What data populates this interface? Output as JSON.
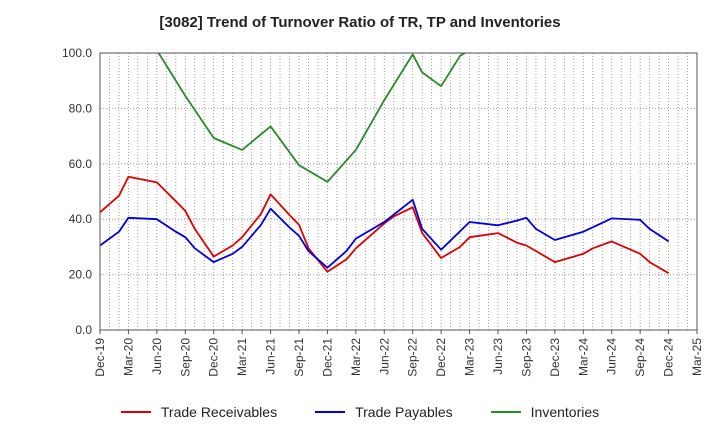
{
  "chart_data": {
    "type": "line",
    "title": "[3082]  Trend of Turnover Ratio of TR, TP and Inventories",
    "xlabel": "",
    "ylabel": "",
    "ylim": [
      0,
      100
    ],
    "yticks": [
      "0.0",
      "20.0",
      "40.0",
      "60.0",
      "80.0",
      "100.0"
    ],
    "grid": true,
    "legend_position": "bottom",
    "x_tick_labels": [
      "Dec-19",
      "Mar-20",
      "Jun-20",
      "Sep-20",
      "Dec-20",
      "Mar-21",
      "Jun-21",
      "Sep-21",
      "Dec-21",
      "Mar-22",
      "Jun-22",
      "Sep-22",
      "Dec-22",
      "Mar-23",
      "Jun-23",
      "Sep-23",
      "Dec-23",
      "Mar-24",
      "Jun-24",
      "Sep-24",
      "Dec-24",
      "Mar-25"
    ],
    "x": [
      "2019-12",
      "2020-01",
      "2020-02",
      "2020-03",
      "2020-04",
      "2020-05",
      "2020-06",
      "2020-07",
      "2020-08",
      "2020-09",
      "2020-10",
      "2020-11",
      "2020-12",
      "2021-01",
      "2021-02",
      "2021-03",
      "2021-04",
      "2021-05",
      "2021-06",
      "2021-07",
      "2021-08",
      "2021-09",
      "2021-10",
      "2021-11",
      "2021-12",
      "2022-01",
      "2022-02",
      "2022-03",
      "2022-04",
      "2022-05",
      "2022-06",
      "2022-07",
      "2022-08",
      "2022-09",
      "2022-10",
      "2022-11",
      "2022-12",
      "2023-01",
      "2023-02",
      "2023-03",
      "2023-04",
      "2023-05",
      "2023-06",
      "2023-07",
      "2023-08",
      "2023-09",
      "2023-10",
      "2023-11",
      "2023-12",
      "2024-01",
      "2024-02",
      "2024-03",
      "2024-04",
      "2024-05",
      "2024-06",
      "2024-07",
      "2024-08",
      "2024-09",
      "2024-10",
      "2024-11",
      "2024-12",
      "2025-01",
      "2025-02",
      "2025-03"
    ],
    "series": [
      {
        "name": "Trade Receivables",
        "color": "#e00000",
        "points": [
          [
            "2019-12",
            42.5
          ],
          [
            "2020-02",
            48.5
          ],
          [
            "2020-03",
            55.3
          ],
          [
            "2020-06",
            53.3
          ],
          [
            "2020-08",
            46.5
          ],
          [
            "2020-09",
            43.0
          ],
          [
            "2020-10",
            36.5
          ],
          [
            "2020-12",
            26.5
          ],
          [
            "2021-02",
            30.5
          ],
          [
            "2021-03",
            33.5
          ],
          [
            "2021-05",
            42.0
          ],
          [
            "2021-06",
            49.0
          ],
          [
            "2021-08",
            41.5
          ],
          [
            "2021-09",
            38.0
          ],
          [
            "2021-10",
            29.5
          ],
          [
            "2021-12",
            21.0
          ],
          [
            "2022-02",
            25.5
          ],
          [
            "2022-03",
            29.5
          ],
          [
            "2022-06",
            38.5
          ],
          [
            "2022-07",
            41.0
          ],
          [
            "2022-09",
            44.3
          ],
          [
            "2022-10",
            35.0
          ],
          [
            "2022-12",
            26.0
          ],
          [
            "2023-02",
            30.0
          ],
          [
            "2023-03",
            33.5
          ],
          [
            "2023-06",
            35.0
          ],
          [
            "2023-08",
            31.5
          ],
          [
            "2023-09",
            30.5
          ],
          [
            "2023-12",
            24.5
          ],
          [
            "2024-03",
            27.5
          ],
          [
            "2024-04",
            29.5
          ],
          [
            "2024-06",
            32.0
          ],
          [
            "2024-08",
            29.0
          ],
          [
            "2024-09",
            27.5
          ],
          [
            "2024-10",
            24.5
          ],
          [
            "2024-12",
            20.5
          ]
        ]
      },
      {
        "name": "Trade Payables",
        "color": "#0000e0",
        "points": [
          [
            "2019-12",
            30.5
          ],
          [
            "2020-02",
            35.5
          ],
          [
            "2020-03",
            40.5
          ],
          [
            "2020-06",
            40.0
          ],
          [
            "2020-08",
            35.5
          ],
          [
            "2020-09",
            33.5
          ],
          [
            "2020-10",
            29.5
          ],
          [
            "2020-12",
            24.5
          ],
          [
            "2021-02",
            27.5
          ],
          [
            "2021-03",
            30.0
          ],
          [
            "2021-05",
            38.0
          ],
          [
            "2021-06",
            43.8
          ],
          [
            "2021-08",
            37.0
          ],
          [
            "2021-09",
            34.0
          ],
          [
            "2021-10",
            28.5
          ],
          [
            "2021-12",
            22.5
          ],
          [
            "2022-02",
            28.5
          ],
          [
            "2022-03",
            33.0
          ],
          [
            "2022-06",
            39.0
          ],
          [
            "2022-09",
            47.0
          ],
          [
            "2022-10",
            36.5
          ],
          [
            "2022-12",
            29.0
          ],
          [
            "2023-03",
            39.0
          ],
          [
            "2023-06",
            37.8
          ],
          [
            "2023-08",
            39.5
          ],
          [
            "2023-09",
            40.5
          ],
          [
            "2023-10",
            36.5
          ],
          [
            "2023-12",
            32.5
          ],
          [
            "2024-03",
            35.5
          ],
          [
            "2024-06",
            40.3
          ],
          [
            "2024-09",
            39.8
          ],
          [
            "2024-10",
            36.5
          ],
          [
            "2024-12",
            32.0
          ]
        ]
      },
      {
        "name": "Inventories",
        "color": "#2a8a2a",
        "points": [
          [
            "2020-06",
            101.0
          ],
          [
            "2020-09",
            84.5
          ],
          [
            "2020-12",
            69.3
          ],
          [
            "2021-03",
            65.0
          ],
          [
            "2021-06",
            73.5
          ],
          [
            "2021-09",
            59.5
          ],
          [
            "2021-12",
            53.5
          ],
          [
            "2022-03",
            65.0
          ],
          [
            "2022-06",
            83.0
          ],
          [
            "2022-09",
            99.5
          ],
          [
            "2022-10",
            93.0
          ],
          [
            "2022-12",
            88.0
          ],
          [
            "2023-02",
            99.0
          ],
          [
            "2023-03",
            101.0
          ]
        ]
      }
    ]
  }
}
